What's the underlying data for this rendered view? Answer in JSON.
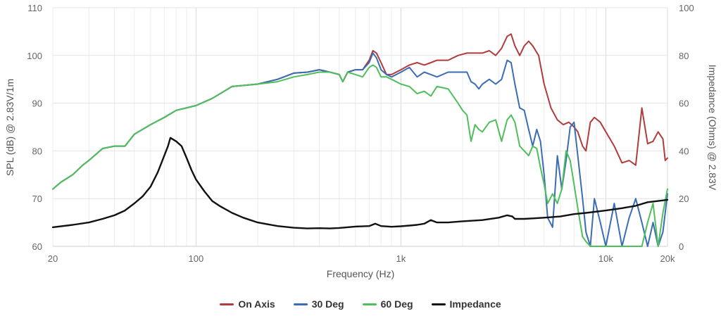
{
  "chart_data": {
    "type": "line",
    "xlabel": "Frequency (Hz)",
    "ylabel_left": "SPL (dB) @ 2.83V/1m",
    "ylabel_right": "Impedance (Ohms) @ 2.83V",
    "x_scale": "log",
    "xlim": [
      20,
      20000
    ],
    "ylim_left": [
      60,
      110
    ],
    "ylim_right": [
      0,
      100
    ],
    "x_ticks": [
      {
        "value": 20,
        "label": "20"
      },
      {
        "value": 100,
        "label": "100"
      },
      {
        "value": 1000,
        "label": "1k"
      },
      {
        "value": 10000,
        "label": "10k"
      },
      {
        "value": 20000,
        "label": "20k"
      }
    ],
    "y_ticks_left": [
      60,
      70,
      80,
      90,
      100,
      110
    ],
    "y_ticks_right": [
      0,
      20,
      40,
      60,
      80,
      100
    ],
    "grid": true,
    "legend_position": "bottom",
    "series": [
      {
        "name": "On Axis",
        "color": "#b23b3b",
        "axis": "left",
        "points": [
          [
            20,
            72
          ],
          [
            22,
            73.5
          ],
          [
            25,
            75
          ],
          [
            28,
            77
          ],
          [
            30,
            78
          ],
          [
            35,
            80.5
          ],
          [
            40,
            81
          ],
          [
            45,
            81
          ],
          [
            50,
            83.5
          ],
          [
            60,
            85.5
          ],
          [
            70,
            87
          ],
          [
            80,
            88.5
          ],
          [
            100,
            89.5
          ],
          [
            120,
            91
          ],
          [
            150,
            93.5
          ],
          [
            200,
            94
          ],
          [
            250,
            95
          ],
          [
            300,
            96.3
          ],
          [
            350,
            96.5
          ],
          [
            400,
            97
          ],
          [
            450,
            96.5
          ],
          [
            500,
            96
          ],
          [
            520,
            94.5
          ],
          [
            550,
            96.5
          ],
          [
            600,
            97
          ],
          [
            650,
            97
          ],
          [
            700,
            99
          ],
          [
            730,
            101
          ],
          [
            760,
            100.5
          ],
          [
            800,
            98.5
          ],
          [
            850,
            96
          ],
          [
            900,
            96
          ],
          [
            1000,
            97
          ],
          [
            1100,
            98
          ],
          [
            1200,
            98.5
          ],
          [
            1300,
            98
          ],
          [
            1400,
            98.5
          ],
          [
            1500,
            99
          ],
          [
            1700,
            99
          ],
          [
            1900,
            100
          ],
          [
            2100,
            100.5
          ],
          [
            2300,
            100.5
          ],
          [
            2500,
            100.5
          ],
          [
            2700,
            101
          ],
          [
            2900,
            100
          ],
          [
            3100,
            101.5
          ],
          [
            3300,
            104
          ],
          [
            3450,
            104.5
          ],
          [
            3600,
            102
          ],
          [
            3800,
            100
          ],
          [
            4000,
            102
          ],
          [
            4200,
            103
          ],
          [
            4400,
            102
          ],
          [
            4700,
            100
          ],
          [
            5000,
            94
          ],
          [
            5400,
            89
          ],
          [
            5800,
            86.5
          ],
          [
            6200,
            85.5
          ],
          [
            6600,
            86
          ],
          [
            7000,
            85
          ],
          [
            7300,
            84
          ],
          [
            7700,
            81
          ],
          [
            8000,
            80
          ],
          [
            8400,
            86
          ],
          [
            8800,
            87
          ],
          [
            9400,
            86
          ],
          [
            10000,
            84
          ],
          [
            11000,
            81
          ],
          [
            12000,
            77.5
          ],
          [
            13000,
            78
          ],
          [
            14000,
            77
          ],
          [
            15000,
            89
          ],
          [
            16000,
            81.5
          ],
          [
            17000,
            82
          ],
          [
            18000,
            84
          ],
          [
            19000,
            82.5
          ],
          [
            19500,
            78
          ],
          [
            20000,
            78.5
          ]
        ]
      },
      {
        "name": "30 Deg",
        "color": "#3a6db3",
        "axis": "left",
        "points": [
          [
            20,
            72
          ],
          [
            22,
            73.5
          ],
          [
            25,
            75
          ],
          [
            28,
            77
          ],
          [
            30,
            78
          ],
          [
            35,
            80.5
          ],
          [
            40,
            81
          ],
          [
            45,
            81
          ],
          [
            50,
            83.5
          ],
          [
            60,
            85.5
          ],
          [
            70,
            87
          ],
          [
            80,
            88.5
          ],
          [
            100,
            89.5
          ],
          [
            120,
            91
          ],
          [
            150,
            93.5
          ],
          [
            200,
            94
          ],
          [
            250,
            95
          ],
          [
            300,
            96.3
          ],
          [
            350,
            96.5
          ],
          [
            400,
            97
          ],
          [
            450,
            96.5
          ],
          [
            500,
            96
          ],
          [
            520,
            94.5
          ],
          [
            550,
            96.5
          ],
          [
            600,
            97
          ],
          [
            650,
            97
          ],
          [
            700,
            98.5
          ],
          [
            730,
            100.5
          ],
          [
            760,
            99.5
          ],
          [
            800,
            97
          ],
          [
            850,
            96
          ],
          [
            900,
            95.5
          ],
          [
            1000,
            96.5
          ],
          [
            1100,
            97.5
          ],
          [
            1200,
            95.5
          ],
          [
            1300,
            96.5
          ],
          [
            1400,
            96
          ],
          [
            1500,
            95.5
          ],
          [
            1700,
            96.5
          ],
          [
            1900,
            96.5
          ],
          [
            2100,
            96.5
          ],
          [
            2200,
            94.5
          ],
          [
            2300,
            94
          ],
          [
            2400,
            93
          ],
          [
            2500,
            94
          ],
          [
            2700,
            95
          ],
          [
            2900,
            94
          ],
          [
            3100,
            95
          ],
          [
            3300,
            99
          ],
          [
            3450,
            98.5
          ],
          [
            3600,
            94
          ],
          [
            3800,
            89
          ],
          [
            4000,
            88.5
          ],
          [
            4200,
            84.5
          ],
          [
            4400,
            81
          ],
          [
            4600,
            84.5
          ],
          [
            4800,
            82
          ],
          [
            5000,
            75
          ],
          [
            5200,
            66
          ],
          [
            5500,
            64
          ],
          [
            5800,
            79
          ],
          [
            6100,
            72
          ],
          [
            6400,
            78
          ],
          [
            6700,
            85
          ],
          [
            7000,
            86
          ],
          [
            7300,
            79
          ],
          [
            7700,
            70
          ],
          [
            8000,
            63
          ],
          [
            8400,
            60
          ],
          [
            8800,
            70
          ],
          [
            9400,
            65
          ],
          [
            10000,
            60
          ],
          [
            11000,
            69
          ],
          [
            12000,
            60
          ],
          [
            13000,
            66
          ],
          [
            14000,
            70
          ],
          [
            15000,
            65
          ],
          [
            16000,
            60
          ],
          [
            17000,
            65
          ],
          [
            18000,
            60
          ],
          [
            19000,
            63
          ],
          [
            20000,
            71
          ]
        ]
      },
      {
        "name": "60 Deg",
        "color": "#4fbf5c",
        "axis": "left",
        "points": [
          [
            20,
            72
          ],
          [
            22,
            73.5
          ],
          [
            25,
            75
          ],
          [
            28,
            77
          ],
          [
            30,
            78
          ],
          [
            35,
            80.5
          ],
          [
            40,
            81
          ],
          [
            45,
            81
          ],
          [
            50,
            83.5
          ],
          [
            60,
            85.5
          ],
          [
            70,
            87
          ],
          [
            80,
            88.5
          ],
          [
            100,
            89.5
          ],
          [
            120,
            91
          ],
          [
            150,
            93.5
          ],
          [
            200,
            94
          ],
          [
            250,
            94.5
          ],
          [
            300,
            95.5
          ],
          [
            350,
            96
          ],
          [
            400,
            96.5
          ],
          [
            450,
            96.5
          ],
          [
            500,
            96
          ],
          [
            520,
            94.5
          ],
          [
            550,
            96.5
          ],
          [
            600,
            96
          ],
          [
            650,
            95.5
          ],
          [
            700,
            97.5
          ],
          [
            730,
            98
          ],
          [
            760,
            97.5
          ],
          [
            800,
            95.5
          ],
          [
            850,
            95.5
          ],
          [
            900,
            95
          ],
          [
            1000,
            94
          ],
          [
            1100,
            93.5
          ],
          [
            1200,
            92
          ],
          [
            1300,
            92.5
          ],
          [
            1400,
            91.5
          ],
          [
            1500,
            93.5
          ],
          [
            1700,
            93
          ],
          [
            1900,
            90
          ],
          [
            2000,
            88.5
          ],
          [
            2100,
            87.5
          ],
          [
            2200,
            82
          ],
          [
            2300,
            85.5
          ],
          [
            2400,
            84.5
          ],
          [
            2500,
            84
          ],
          [
            2700,
            86
          ],
          [
            2900,
            86.5
          ],
          [
            3100,
            82
          ],
          [
            3300,
            86.5
          ],
          [
            3450,
            87.5
          ],
          [
            3600,
            86
          ],
          [
            3800,
            81
          ],
          [
            4000,
            80
          ],
          [
            4200,
            79
          ],
          [
            4400,
            81
          ],
          [
            4600,
            80.5
          ],
          [
            4800,
            76.5
          ],
          [
            5000,
            73
          ],
          [
            5200,
            69
          ],
          [
            5500,
            71
          ],
          [
            5800,
            69
          ],
          [
            6100,
            72
          ],
          [
            6400,
            80
          ],
          [
            6700,
            78
          ],
          [
            7000,
            73
          ],
          [
            7300,
            68
          ],
          [
            7700,
            62
          ],
          [
            8000,
            61
          ],
          [
            8400,
            60
          ],
          [
            8800,
            60
          ],
          [
            9400,
            60
          ],
          [
            10000,
            60
          ],
          [
            11000,
            60
          ],
          [
            12000,
            60
          ],
          [
            13000,
            60
          ],
          [
            14000,
            60
          ],
          [
            15000,
            60
          ],
          [
            16000,
            65
          ],
          [
            17000,
            69
          ],
          [
            18000,
            60
          ],
          [
            19000,
            67
          ],
          [
            20000,
            72
          ]
        ]
      },
      {
        "name": "Impedance",
        "color": "#111111",
        "axis": "right",
        "points": [
          [
            20,
            8
          ],
          [
            25,
            9
          ],
          [
            30,
            10
          ],
          [
            35,
            11.5
          ],
          [
            40,
            13
          ],
          [
            45,
            15
          ],
          [
            50,
            18
          ],
          [
            55,
            21
          ],
          [
            60,
            25
          ],
          [
            65,
            31
          ],
          [
            70,
            38
          ],
          [
            73,
            42
          ],
          [
            75,
            45.5
          ],
          [
            80,
            44
          ],
          [
            85,
            42
          ],
          [
            90,
            37
          ],
          [
            95,
            32
          ],
          [
            100,
            28
          ],
          [
            110,
            23
          ],
          [
            120,
            19
          ],
          [
            130,
            17
          ],
          [
            150,
            14
          ],
          [
            170,
            12
          ],
          [
            200,
            10
          ],
          [
            250,
            8.5
          ],
          [
            300,
            7.8
          ],
          [
            350,
            7.5
          ],
          [
            400,
            7.6
          ],
          [
            450,
            7.5
          ],
          [
            500,
            7.7
          ],
          [
            600,
            8.3
          ],
          [
            700,
            8.5
          ],
          [
            750,
            9.5
          ],
          [
            800,
            8.5
          ],
          [
            900,
            8.2
          ],
          [
            1000,
            8.4
          ],
          [
            1100,
            8.7
          ],
          [
            1200,
            9.0
          ],
          [
            1300,
            9.5
          ],
          [
            1400,
            11.0
          ],
          [
            1500,
            10.0
          ],
          [
            1700,
            10.0
          ],
          [
            2000,
            10.5
          ],
          [
            2500,
            11
          ],
          [
            3000,
            12
          ],
          [
            3300,
            13
          ],
          [
            3500,
            12.5
          ],
          [
            3600,
            11.5
          ],
          [
            4000,
            11.5
          ],
          [
            5000,
            12
          ],
          [
            6000,
            12.5
          ],
          [
            7000,
            13.5
          ],
          [
            8000,
            14
          ],
          [
            10000,
            15
          ],
          [
            12000,
            16
          ],
          [
            14000,
            17
          ],
          [
            16000,
            18.5
          ],
          [
            18000,
            19
          ],
          [
            20000,
            19.5
          ]
        ]
      }
    ]
  }
}
